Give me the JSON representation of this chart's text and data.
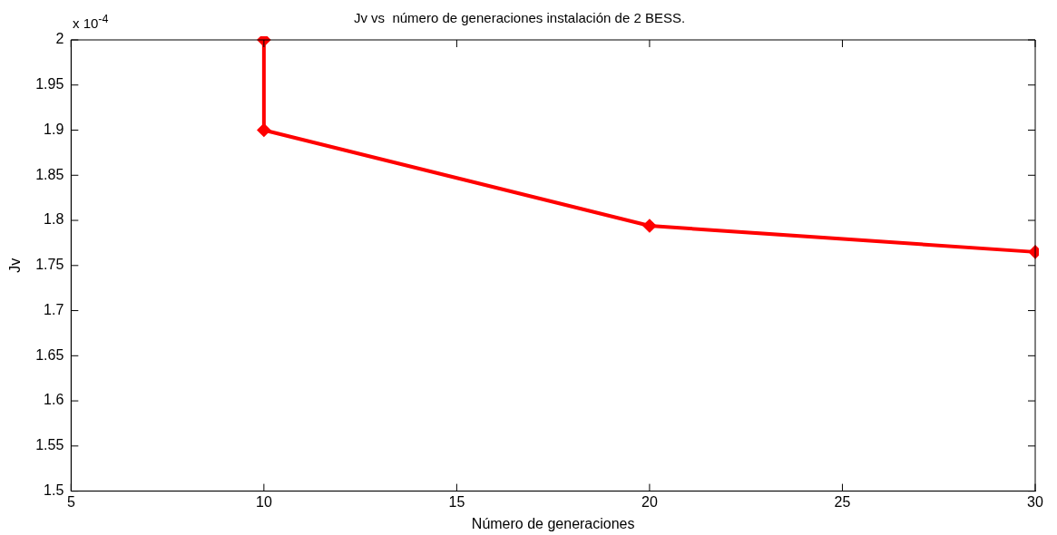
{
  "chart_data": {
    "type": "line",
    "title": "Jv vs  número de generaciones instalación de 2 BESS.",
    "xlabel": "Número de generaciones",
    "ylabel": "Jv",
    "annotations": [
      "x 10$^{-4}$"
    ],
    "x": [
      10,
      10,
      20,
      30
    ],
    "series": [
      {
        "color": "#ff0000",
        "values": [
          2.0,
          1.9,
          1.794,
          1.765
        ]
      }
    ],
    "xlim": [
      5,
      30
    ],
    "xticks": [
      5,
      10,
      15,
      20,
      25,
      30
    ],
    "ylim": [
      1.5,
      2
    ],
    "yticks": [
      1.5,
      1.55,
      1.6,
      1.65,
      1.7,
      1.75,
      1.8,
      1.85,
      1.9,
      1.95,
      2
    ],
    "grid": false,
    "legend": false,
    "marker": "diamond",
    "line_style": "solid"
  }
}
